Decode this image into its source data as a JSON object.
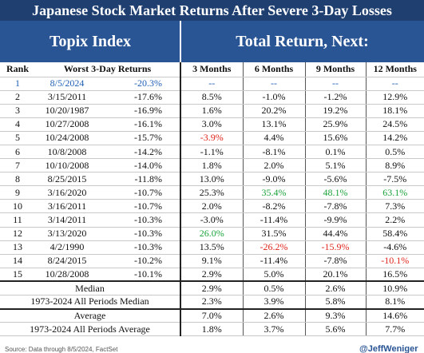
{
  "title": "Japanese Stock Market Returns After Severe 3-Day Losses",
  "header": {
    "left": "Topix Index",
    "right": "Total Return, Next:"
  },
  "columns": [
    "Rank",
    "Worst 3-Day Returns",
    "3 Months",
    "6 Months",
    "9 Months",
    "12 Months"
  ],
  "rows": [
    {
      "rank": "1",
      "date": "8/5/2024",
      "ret": "-20.3%",
      "m3": "--",
      "m6": "--",
      "m9": "--",
      "m12": "--"
    },
    {
      "rank": "2",
      "date": "3/15/2011",
      "ret": "-17.6%",
      "m3": "8.5%",
      "m6": "-1.0%",
      "m9": "-1.2%",
      "m12": "12.9%"
    },
    {
      "rank": "3",
      "date": "10/20/1987",
      "ret": "-16.9%",
      "m3": "1.6%",
      "m6": "20.2%",
      "m9": "19.2%",
      "m12": "18.1%"
    },
    {
      "rank": "4",
      "date": "10/27/2008",
      "ret": "-16.1%",
      "m3": "3.0%",
      "m6": "13.1%",
      "m9": "25.9%",
      "m12": "24.5%"
    },
    {
      "rank": "5",
      "date": "10/24/2008",
      "ret": "-15.7%",
      "m3": "-3.9%",
      "m6": "4.4%",
      "m9": "15.6%",
      "m12": "14.2%"
    },
    {
      "rank": "6",
      "date": "10/8/2008",
      "ret": "-14.2%",
      "m3": "-1.1%",
      "m6": "-8.1%",
      "m9": "0.1%",
      "m12": "0.5%"
    },
    {
      "rank": "7",
      "date": "10/10/2008",
      "ret": "-14.0%",
      "m3": "1.8%",
      "m6": "2.0%",
      "m9": "5.1%",
      "m12": "8.9%"
    },
    {
      "rank": "8",
      "date": "8/25/2015",
      "ret": "-11.8%",
      "m3": "13.0%",
      "m6": "-9.0%",
      "m9": "-5.6%",
      "m12": "-7.5%"
    },
    {
      "rank": "9",
      "date": "3/16/2020",
      "ret": "-10.7%",
      "m3": "25.3%",
      "m6": "35.4%",
      "m9": "48.1%",
      "m12": "63.1%"
    },
    {
      "rank": "10",
      "date": "3/16/2011",
      "ret": "-10.7%",
      "m3": "2.0%",
      "m6": "-8.2%",
      "m9": "-7.8%",
      "m12": "7.3%"
    },
    {
      "rank": "11",
      "date": "3/14/2011",
      "ret": "-10.3%",
      "m3": "-3.0%",
      "m6": "-11.4%",
      "m9": "-9.9%",
      "m12": "2.2%"
    },
    {
      "rank": "12",
      "date": "3/13/2020",
      "ret": "-10.3%",
      "m3": "26.0%",
      "m6": "31.5%",
      "m9": "44.4%",
      "m12": "58.4%"
    },
    {
      "rank": "13",
      "date": "4/2/1990",
      "ret": "-10.3%",
      "m3": "13.5%",
      "m6": "-26.2%",
      "m9": "-15.9%",
      "m12": "-4.6%"
    },
    {
      "rank": "14",
      "date": "8/24/2015",
      "ret": "-10.2%",
      "m3": "9.1%",
      "m6": "-11.4%",
      "m9": "-7.8%",
      "m12": "-10.1%"
    },
    {
      "rank": "15",
      "date": "10/28/2008",
      "ret": "-10.1%",
      "m3": "2.9%",
      "m6": "5.0%",
      "m9": "20.1%",
      "m12": "16.5%"
    }
  ],
  "summary": [
    {
      "label": "Median",
      "m3": "2.9%",
      "m6": "0.5%",
      "m9": "2.6%",
      "m12": "10.9%"
    },
    {
      "label": "1973-2024 All Periods Median",
      "m3": "2.3%",
      "m6": "3.9%",
      "m9": "5.8%",
      "m12": "8.1%"
    },
    {
      "label": "Average",
      "m3": "7.0%",
      "m6": "2.6%",
      "m9": "9.3%",
      "m12": "14.6%"
    },
    {
      "label": "1973-2024 All Periods Average",
      "m3": "1.8%",
      "m6": "3.7%",
      "m9": "5.6%",
      "m12": "7.7%"
    }
  ],
  "colors": {
    "title_bg": "#1f3f70",
    "header_bg": "#2a5595",
    "highlight": "#1f5fb5",
    "negative_hl": "#e0261c",
    "positive_hl": "#1aa33a"
  },
  "footer": {
    "source": "Source: Data through 8/5/2024, FactSet",
    "handle": "@JeffWeniger"
  }
}
